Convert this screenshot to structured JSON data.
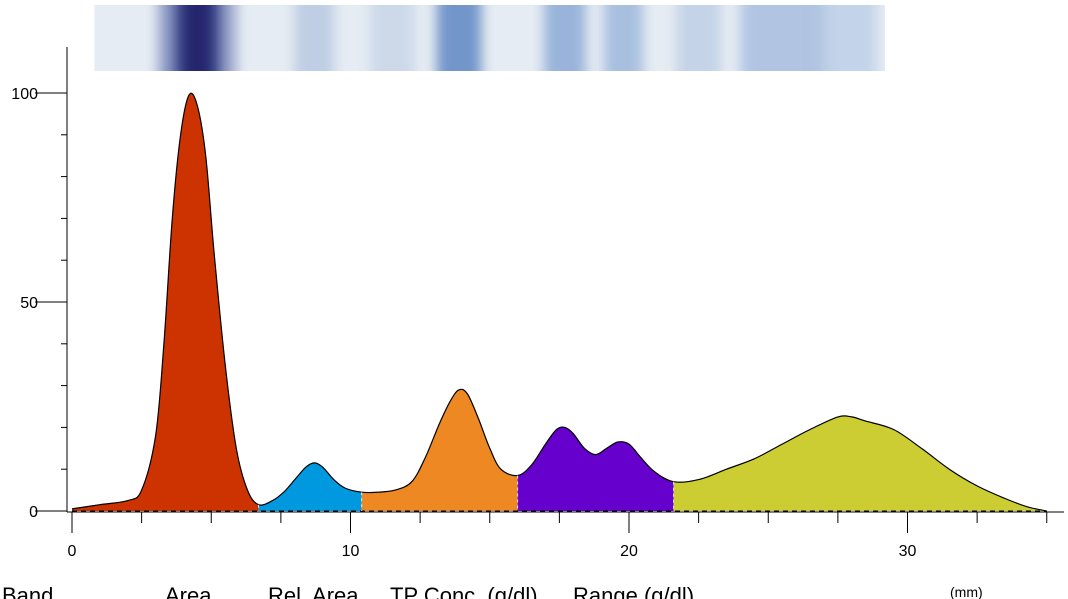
{
  "chart_data": {
    "type": "area",
    "title": "",
    "xlabel": "",
    "ylabel": "",
    "x_unit": "(mm)",
    "xlim": [
      0,
      35.5
    ],
    "ylim": [
      0,
      100
    ],
    "x_ticks": [
      0,
      10,
      20,
      30
    ],
    "y_ticks": [
      0,
      50,
      100
    ],
    "grid": false,
    "legend": "none",
    "profile": [
      [
        0.0,
        0.5
      ],
      [
        1.0,
        1.5
      ],
      [
        2.0,
        2.5
      ],
      [
        2.5,
        5
      ],
      [
        3.0,
        18
      ],
      [
        3.3,
        40
      ],
      [
        3.6,
        70
      ],
      [
        3.9,
        90
      ],
      [
        4.2,
        99.5
      ],
      [
        4.5,
        97
      ],
      [
        4.8,
        85
      ],
      [
        5.1,
        62
      ],
      [
        5.5,
        35
      ],
      [
        5.9,
        15
      ],
      [
        6.3,
        5
      ],
      [
        6.7,
        1.5
      ],
      [
        7.2,
        2.5
      ],
      [
        7.6,
        4.5
      ],
      [
        8.0,
        7.5
      ],
      [
        8.4,
        10.5
      ],
      [
        8.7,
        11.5
      ],
      [
        9.0,
        10.5
      ],
      [
        9.4,
        7.5
      ],
      [
        9.8,
        5.5
      ],
      [
        10.4,
        4.5
      ],
      [
        11.0,
        4.5
      ],
      [
        11.6,
        5
      ],
      [
        12.2,
        7
      ],
      [
        12.7,
        13
      ],
      [
        13.2,
        21
      ],
      [
        13.6,
        26.5
      ],
      [
        13.9,
        29
      ],
      [
        14.2,
        28
      ],
      [
        14.6,
        22
      ],
      [
        15.0,
        15
      ],
      [
        15.4,
        10
      ],
      [
        16.0,
        8.5
      ],
      [
        16.5,
        11
      ],
      [
        17.0,
        16
      ],
      [
        17.4,
        19.5
      ],
      [
        17.7,
        20
      ],
      [
        18.0,
        18.5
      ],
      [
        18.4,
        15
      ],
      [
        18.8,
        13.5
      ],
      [
        19.2,
        15
      ],
      [
        19.6,
        16.5
      ],
      [
        20.0,
        16
      ],
      [
        20.4,
        13
      ],
      [
        20.9,
        9.5
      ],
      [
        21.6,
        7
      ],
      [
        22.5,
        7.5
      ],
      [
        23.5,
        10
      ],
      [
        24.5,
        12.5
      ],
      [
        25.5,
        16
      ],
      [
        26.5,
        19.5
      ],
      [
        27.5,
        22.5
      ],
      [
        28.0,
        22.5
      ],
      [
        28.5,
        21.5
      ],
      [
        29.5,
        19.5
      ],
      [
        30.5,
        15
      ],
      [
        31.5,
        10
      ],
      [
        32.5,
        6
      ],
      [
        33.5,
        3
      ],
      [
        34.3,
        1
      ],
      [
        35.0,
        0
      ]
    ],
    "fractions": [
      {
        "from": 0.0,
        "to": 6.7,
        "color": "#cc3300"
      },
      {
        "from": 6.7,
        "to": 10.4,
        "color": "#0099e0"
      },
      {
        "from": 10.4,
        "to": 16.0,
        "color": "#ee8822"
      },
      {
        "from": 16.0,
        "to": 21.6,
        "color": "#6600cc"
      },
      {
        "from": 21.6,
        "to": 35.0,
        "color": "#cccc33"
      }
    ],
    "gel_strip": {
      "from": 0.8,
      "to": 29.2,
      "background": "#e6ecf3",
      "bands": [
        {
          "center": 4.5,
          "width": 1.6,
          "color": "#1a1f66",
          "opacity": 0.95
        },
        {
          "center": 3.6,
          "width": 1.0,
          "color": "#3b4f99",
          "opacity": 0.5
        },
        {
          "center": 5.4,
          "width": 1.0,
          "color": "#3b4f99",
          "opacity": 0.45
        },
        {
          "center": 8.7,
          "width": 1.4,
          "color": "#9fb6d8",
          "opacity": 0.55
        },
        {
          "center": 11.5,
          "width": 1.6,
          "color": "#b4c6e0",
          "opacity": 0.5
        },
        {
          "center": 13.9,
          "width": 1.6,
          "color": "#5680c0",
          "opacity": 0.8
        },
        {
          "center": 17.7,
          "width": 1.5,
          "color": "#6f96cc",
          "opacity": 0.65
        },
        {
          "center": 19.8,
          "width": 1.4,
          "color": "#7fa2d2",
          "opacity": 0.6
        },
        {
          "center": 22.5,
          "width": 1.6,
          "color": "#a8bfdf",
          "opacity": 0.55
        },
        {
          "center": 25.5,
          "width": 3.0,
          "color": "#8eacd8",
          "opacity": 0.6
        },
        {
          "center": 27.8,
          "width": 2.2,
          "color": "#a7bfe0",
          "opacity": 0.55
        }
      ]
    }
  },
  "footer": {
    "columns": [
      "Band",
      "Area",
      "Rel. Area",
      "TP Conc. (g/dl)",
      "Range (g/dl)"
    ]
  }
}
